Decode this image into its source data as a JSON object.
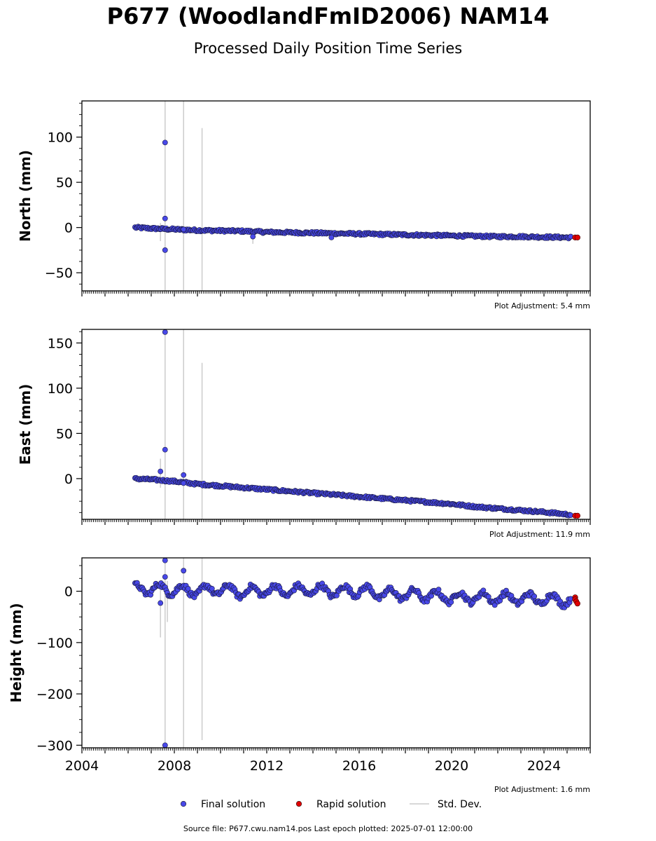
{
  "title": "P677 (WoodlandFmID2006) NAM14",
  "subtitle": "Processed Daily Position Time Series",
  "source_line": "Source file: P677.cwu.nam14.pos  Last epoch plotted: 2025-07-01 12:00:00",
  "legend": {
    "items": [
      {
        "label": "Final solution",
        "color": "#4848e8",
        "kind": "marker"
      },
      {
        "label": "Rapid solution",
        "color": "#e00000",
        "kind": "marker"
      },
      {
        "label": "Std. Dev.",
        "color": "#cccccc",
        "kind": "line"
      }
    ],
    "placement": "bottom-center"
  },
  "colors": {
    "final": "#4848e8",
    "rapid": "#e00000",
    "stddev": "#cccccc",
    "edge": "#1a1a40"
  },
  "chart_data": [
    {
      "type": "scatter",
      "ylabel": "North (mm)",
      "adjustment": "Plot Adjustment: 5.4 mm",
      "xlim": [
        2004,
        2026
      ],
      "ylim": [
        -70,
        140
      ],
      "yticks": [
        -50,
        0,
        50,
        100
      ],
      "grid": false,
      "trend": {
        "start": [
          2006.3,
          0
        ],
        "end": [
          2025.4,
          -11
        ]
      },
      "final_series": [
        [
          2006.3,
          0
        ],
        [
          2007,
          -1
        ],
        [
          2008,
          -2
        ],
        [
          2009,
          -3
        ],
        [
          2010,
          -3.5
        ],
        [
          2011,
          -4
        ],
        [
          2012,
          -5
        ],
        [
          2013,
          -5.5
        ],
        [
          2014,
          -6
        ],
        [
          2015,
          -6.5
        ],
        [
          2016,
          -7
        ],
        [
          2017,
          -7.5
        ],
        [
          2018,
          -8
        ],
        [
          2019,
          -8.5
        ],
        [
          2020,
          -9
        ],
        [
          2021,
          -9.5
        ],
        [
          2022,
          -10
        ],
        [
          2023,
          -10
        ],
        [
          2024,
          -10.5
        ],
        [
          2025.2,
          -11
        ]
      ],
      "outliers": [
        [
          2007.6,
          94
        ],
        [
          2007.6,
          10
        ],
        [
          2007.6,
          -25
        ],
        [
          2008.4,
          -2
        ],
        [
          2011.4,
          -10
        ],
        [
          2014.8,
          -11
        ]
      ],
      "rapid_series": [
        [
          2025.35,
          -11
        ],
        [
          2025.45,
          -11
        ]
      ],
      "stddev_bars": [
        [
          2007.6,
          -70,
          140
        ],
        [
          2008.4,
          -70,
          140
        ],
        [
          2009.2,
          -70,
          110
        ],
        [
          2007.4,
          -15,
          5
        ],
        [
          2011.4,
          -18,
          -2
        ]
      ]
    },
    {
      "type": "scatter",
      "ylabel": "East (mm)",
      "adjustment": "Plot Adjustment: 11.9 mm",
      "xlim": [
        2004,
        2026
      ],
      "ylim": [
        -45,
        165
      ],
      "yticks": [
        0,
        50,
        100,
        150
      ],
      "grid": false,
      "trend": {
        "start": [
          2006.3,
          0
        ],
        "end": [
          2025.4,
          -41
        ]
      },
      "final_series": [
        [
          2006.3,
          0
        ],
        [
          2007,
          -1
        ],
        [
          2008,
          -3
        ],
        [
          2009,
          -6
        ],
        [
          2010,
          -8
        ],
        [
          2011,
          -10
        ],
        [
          2012,
          -12
        ],
        [
          2013,
          -14
        ],
        [
          2014,
          -16
        ],
        [
          2015,
          -18
        ],
        [
          2016,
          -20
        ],
        [
          2017,
          -22
        ],
        [
          2018,
          -24
        ],
        [
          2019,
          -26
        ],
        [
          2020,
          -28
        ],
        [
          2021,
          -31
        ],
        [
          2022,
          -33
        ],
        [
          2023,
          -35
        ],
        [
          2024,
          -37
        ],
        [
          2025.2,
          -40
        ]
      ],
      "outliers": [
        [
          2007.6,
          162
        ],
        [
          2007.6,
          32
        ],
        [
          2007.4,
          8
        ],
        [
          2008.4,
          4
        ],
        [
          2008.4,
          -5
        ]
      ],
      "rapid_series": [
        [
          2025.35,
          -41
        ],
        [
          2025.45,
          -41
        ]
      ],
      "stddev_bars": [
        [
          2007.6,
          -45,
          165
        ],
        [
          2008.4,
          -45,
          165
        ],
        [
          2009.2,
          -45,
          128
        ],
        [
          2007.4,
          -10,
          22
        ]
      ]
    },
    {
      "type": "scatter",
      "ylabel": "Height (mm)",
      "adjustment": "Plot Adjustment: 1.6 mm",
      "xlabel_ticks": [
        "2004",
        "2008",
        "2012",
        "2016",
        "2020",
        "2024"
      ],
      "xticks": [
        2004,
        2008,
        2012,
        2016,
        2020,
        2024
      ],
      "xlim": [
        2004,
        2026
      ],
      "ylim": [
        -305,
        65
      ],
      "yticks": [
        -300,
        -200,
        -100,
        0
      ],
      "grid": false,
      "trend": {
        "start": [
          2006.3,
          0
        ],
        "end": [
          2025.4,
          -18
        ]
      },
      "seasonal_amplitude_mm": 10,
      "final_series": [
        [
          2006.3,
          2
        ],
        [
          2007,
          5
        ],
        [
          2008,
          3
        ],
        [
          2009,
          0
        ],
        [
          2010,
          4
        ],
        [
          2011,
          -2
        ],
        [
          2012,
          2
        ],
        [
          2013,
          0
        ],
        [
          2014,
          3
        ],
        [
          2015,
          -1
        ],
        [
          2016,
          2
        ],
        [
          2017,
          -5
        ],
        [
          2018,
          -6
        ],
        [
          2019,
          -8
        ],
        [
          2020,
          -12
        ],
        [
          2021,
          -12
        ],
        [
          2022,
          -13
        ],
        [
          2023,
          -14
        ],
        [
          2024,
          -15
        ],
        [
          2025.2,
          -18
        ]
      ],
      "outliers": [
        [
          2007.6,
          60
        ],
        [
          2007.6,
          28
        ],
        [
          2007.4,
          -23
        ],
        [
          2008.4,
          40
        ],
        [
          2007.6,
          -300
        ]
      ],
      "rapid_series": [
        [
          2025.35,
          -12
        ],
        [
          2025.35,
          -16
        ],
        [
          2025.4,
          -20
        ],
        [
          2025.45,
          -24
        ]
      ],
      "stddev_bars": [
        [
          2007.6,
          -305,
          65
        ],
        [
          2008.4,
          -305,
          65
        ],
        [
          2009.2,
          -290,
          65
        ],
        [
          2007.4,
          -90,
          20
        ],
        [
          2007.7,
          -60,
          20
        ]
      ]
    }
  ]
}
